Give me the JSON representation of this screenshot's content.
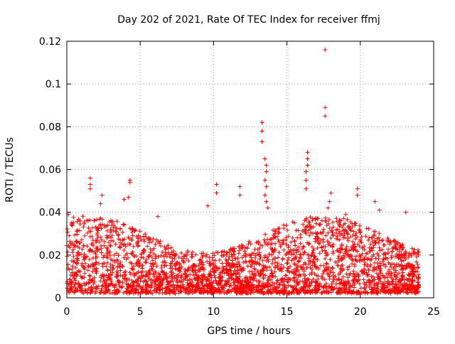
{
  "chart_data": {
    "type": "scatter",
    "title": "Day 202 of 2021, Rate Of TEC Index for receiver ffmj",
    "xlabel": "GPS time / hours",
    "ylabel": "ROTI / TECUs",
    "xlim": [
      0,
      25
    ],
    "ylim": [
      0,
      0.12
    ],
    "xticks": [
      0,
      5,
      10,
      15,
      20,
      25
    ],
    "xtick_labels": [
      "0",
      "5",
      "10",
      "15",
      "20",
      "25"
    ],
    "yticks": [
      0,
      0.02,
      0.04,
      0.06,
      0.08,
      0.1,
      0.12
    ],
    "ytick_labels": [
      "0",
      "0.02",
      "0.04",
      "0.06",
      "0.08",
      "0.1",
      "0.12"
    ],
    "grid": true,
    "marker": "+",
    "color": "#ff0000",
    "series": [
      {
        "name": "ROTI",
        "notable_points": [
          {
            "x": 1.6,
            "y": 0.056
          },
          {
            "x": 1.6,
            "y": 0.053
          },
          {
            "x": 1.6,
            "y": 0.051
          },
          {
            "x": 2.3,
            "y": 0.044
          },
          {
            "x": 2.4,
            "y": 0.048
          },
          {
            "x": 3.9,
            "y": 0.046
          },
          {
            "x": 4.3,
            "y": 0.055
          },
          {
            "x": 4.3,
            "y": 0.054
          },
          {
            "x": 4.2,
            "y": 0.047
          },
          {
            "x": 6.2,
            "y": 0.038
          },
          {
            "x": 9.6,
            "y": 0.043
          },
          {
            "x": 10.2,
            "y": 0.053
          },
          {
            "x": 10.2,
            "y": 0.049
          },
          {
            "x": 11.8,
            "y": 0.052
          },
          {
            "x": 11.8,
            "y": 0.048
          },
          {
            "x": 13.3,
            "y": 0.082
          },
          {
            "x": 13.3,
            "y": 0.078
          },
          {
            "x": 13.3,
            "y": 0.073
          },
          {
            "x": 13.5,
            "y": 0.065
          },
          {
            "x": 13.6,
            "y": 0.062
          },
          {
            "x": 13.6,
            "y": 0.059
          },
          {
            "x": 13.5,
            "y": 0.055
          },
          {
            "x": 13.6,
            "y": 0.052
          },
          {
            "x": 13.5,
            "y": 0.048
          },
          {
            "x": 13.6,
            "y": 0.045
          },
          {
            "x": 13.7,
            "y": 0.042
          },
          {
            "x": 16.4,
            "y": 0.068
          },
          {
            "x": 16.4,
            "y": 0.065
          },
          {
            "x": 16.4,
            "y": 0.062
          },
          {
            "x": 16.3,
            "y": 0.059
          },
          {
            "x": 16.3,
            "y": 0.055
          },
          {
            "x": 16.3,
            "y": 0.051
          },
          {
            "x": 17.6,
            "y": 0.116
          },
          {
            "x": 17.6,
            "y": 0.089
          },
          {
            "x": 17.6,
            "y": 0.085
          },
          {
            "x": 18.0,
            "y": 0.049
          },
          {
            "x": 17.9,
            "y": 0.045
          },
          {
            "x": 17.8,
            "y": 0.042
          },
          {
            "x": 19.0,
            "y": 0.039
          },
          {
            "x": 19.8,
            "y": 0.051
          },
          {
            "x": 19.8,
            "y": 0.048
          },
          {
            "x": 21.0,
            "y": 0.045
          },
          {
            "x": 21.3,
            "y": 0.041
          },
          {
            "x": 23.1,
            "y": 0.04
          },
          {
            "x": 0.1,
            "y": 0.039
          },
          {
            "x": 0.3,
            "y": 0.035
          }
        ],
        "dense_band": {
          "x_range": [
            0,
            24
          ],
          "y_range": [
            0.002,
            0.035
          ],
          "typical_y": 0.012
        }
      }
    ]
  }
}
